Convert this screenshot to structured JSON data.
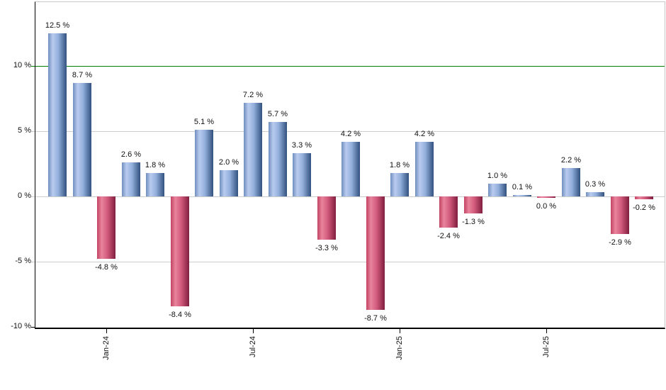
{
  "chart_data": {
    "type": "bar",
    "title": "",
    "description": "Monthly returns bar chart, positive months blue, negative months red",
    "y_axis": {
      "tick_labels": [
        "10 %",
        "5 %",
        "0 %",
        "-5 %",
        "-10 %"
      ],
      "tick_values": [
        10,
        5,
        0,
        -5,
        -10
      ],
      "ylim": [
        -10.2,
        15
      ],
      "grid": true,
      "reference_line_value": 10
    },
    "x_axis": {
      "tick_labels": [
        "Jan-24",
        "Jul-24",
        "Jan-25",
        "Jul-25"
      ],
      "tick_bar_indices": [
        2,
        8,
        14,
        20
      ],
      "label_rotation_deg": -90
    },
    "bars": [
      {
        "value": 12.5,
        "label": "12.5 %",
        "color": "blue"
      },
      {
        "value": 8.7,
        "label": "8.7 %",
        "color": "blue"
      },
      {
        "value": -4.8,
        "label": "-4.8 %",
        "color": "red"
      },
      {
        "value": 2.6,
        "label": "2.6 %",
        "color": "blue"
      },
      {
        "value": 1.8,
        "label": "1.8 %",
        "color": "blue"
      },
      {
        "value": -8.4,
        "label": "-8.4 %",
        "color": "red"
      },
      {
        "value": 5.1,
        "label": "5.1 %",
        "color": "blue"
      },
      {
        "value": 2.0,
        "label": "2.0 %",
        "color": "blue"
      },
      {
        "value": 7.2,
        "label": "7.2 %",
        "color": "blue"
      },
      {
        "value": 5.7,
        "label": "5.7 %",
        "color": "blue"
      },
      {
        "value": 3.3,
        "label": "3.3 %",
        "color": "blue"
      },
      {
        "value": -3.3,
        "label": "-3.3 %",
        "color": "red"
      },
      {
        "value": 4.2,
        "label": "4.2 %",
        "color": "blue"
      },
      {
        "value": -8.7,
        "label": "-8.7 %",
        "color": "red"
      },
      {
        "value": 1.8,
        "label": "1.8 %",
        "color": "blue"
      },
      {
        "value": 4.2,
        "label": "4.2 %",
        "color": "blue"
      },
      {
        "value": -2.4,
        "label": "-2.4 %",
        "color": "red"
      },
      {
        "value": -1.3,
        "label": "-1.3 %",
        "color": "red"
      },
      {
        "value": 1.0,
        "label": "1.0 %",
        "color": "blue"
      },
      {
        "value": 0.1,
        "label": "0.1 %",
        "color": "blue"
      },
      {
        "value": 0.0,
        "label": "0.0 %",
        "color": "red"
      },
      {
        "value": 2.2,
        "label": "2.2 %",
        "color": "blue"
      },
      {
        "value": 0.3,
        "label": "0.3 %",
        "color": "blue"
      },
      {
        "value": -2.9,
        "label": "-2.9 %",
        "color": "red"
      },
      {
        "value": -0.2,
        "label": "-0.2 %",
        "color": "red"
      }
    ],
    "colors": {
      "positive_gradient": [
        "#6f8fbf",
        "#b9cbee",
        "#93afdc",
        "#31517e"
      ],
      "negative_gradient": [
        "#c24463",
        "#e8849c",
        "#d45c7e",
        "#801d3e"
      ],
      "reference_line": "#008000",
      "gridline": "#cccccc",
      "axis": "#000000",
      "plot_border": "#c9c9c9",
      "label_text": "#111111",
      "background": "#ffffff"
    },
    "legend": null
  }
}
